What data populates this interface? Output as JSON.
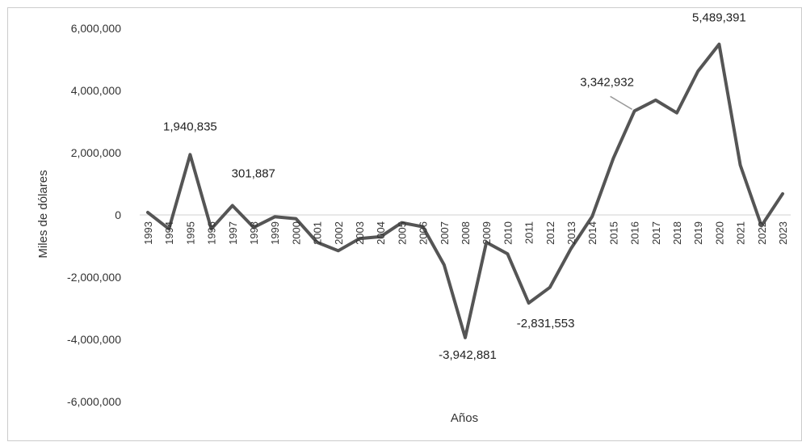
{
  "chart_data": {
    "type": "line",
    "title": "",
    "xlabel": "Años",
    "ylabel": "Miles de dólares",
    "ylim": [
      -6000000,
      6000000
    ],
    "yticks": [
      6000000,
      4000000,
      2000000,
      0,
      -2000000,
      -4000000,
      -6000000
    ],
    "ytick_labels": [
      "6,000,000",
      "4,000,000",
      "2,000,000",
      "0",
      "-2,000,000",
      "-4,000,000",
      "-6,000,000"
    ],
    "grid": false,
    "x": [
      "1993",
      "1994",
      "1995",
      "1996",
      "1997",
      "1998",
      "1999",
      "2000",
      "2001",
      "2002",
      "2003",
      "2004",
      "2005",
      "2006",
      "2007",
      "2008",
      "2009",
      "2010",
      "2011",
      "2012",
      "2013",
      "2014",
      "2015",
      "2016",
      "2017",
      "2018",
      "2019",
      "2020",
      "2021",
      "2022",
      "2023"
    ],
    "x_tick_labels": [
      "1993",
      "1994",
      "1995",
      "1996",
      "1997",
      "1998",
      "1999",
      "2000",
      "2001",
      "2002",
      "2003",
      "2004",
      "2005",
      "2006",
      "2007",
      "2008",
      "2009",
      "2010",
      "2011",
      "2012",
      "2013",
      "2014",
      "2015",
      "2016",
      "2017",
      "2018",
      "2019",
      "2020",
      "2021",
      "2022",
      "2023"
    ],
    "series": [
      {
        "name": "",
        "color": "#555555",
        "values": [
          80000,
          -450000,
          1940835,
          -450000,
          301887,
          -400000,
          -60000,
          -120000,
          -880000,
          -1150000,
          -760000,
          -700000,
          -250000,
          -380000,
          -1600000,
          -3942881,
          -880000,
          -1250000,
          -2831553,
          -2330000,
          -1080000,
          -50000,
          1820000,
          3342932,
          3690000,
          3280000,
          4620000,
          5489391,
          1600000,
          -350000,
          680000
        ]
      }
    ],
    "annotations": [
      {
        "x": "1995",
        "value": 1940835,
        "text": "1,940,835"
      },
      {
        "x": "1997",
        "value": 301887,
        "text": "301,887"
      },
      {
        "x": "2008",
        "value": -3942881,
        "text": "-3,942,881"
      },
      {
        "x": "2011",
        "value": -2831553,
        "text": "-2,831,553"
      },
      {
        "x": "2016",
        "value": 3342932,
        "text": "3,342,932"
      },
      {
        "x": "2020",
        "value": 5489391,
        "text": "5,489,391"
      }
    ]
  }
}
